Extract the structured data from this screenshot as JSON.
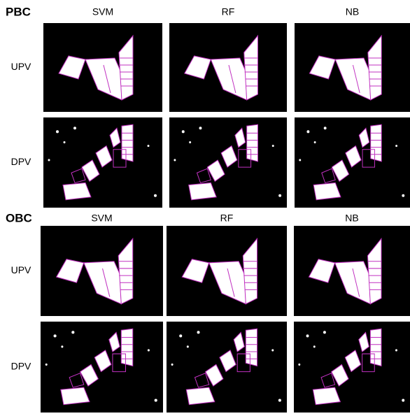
{
  "sections": [
    {
      "title": "PBC",
      "columns": [
        "SVM",
        "RF",
        "NB"
      ],
      "rows": [
        "UPV",
        "DPV"
      ]
    },
    {
      "title": "OBC",
      "columns": [
        "SVM",
        "RF",
        "NB"
      ],
      "rows": [
        "UPV",
        "DPV"
      ]
    }
  ]
}
